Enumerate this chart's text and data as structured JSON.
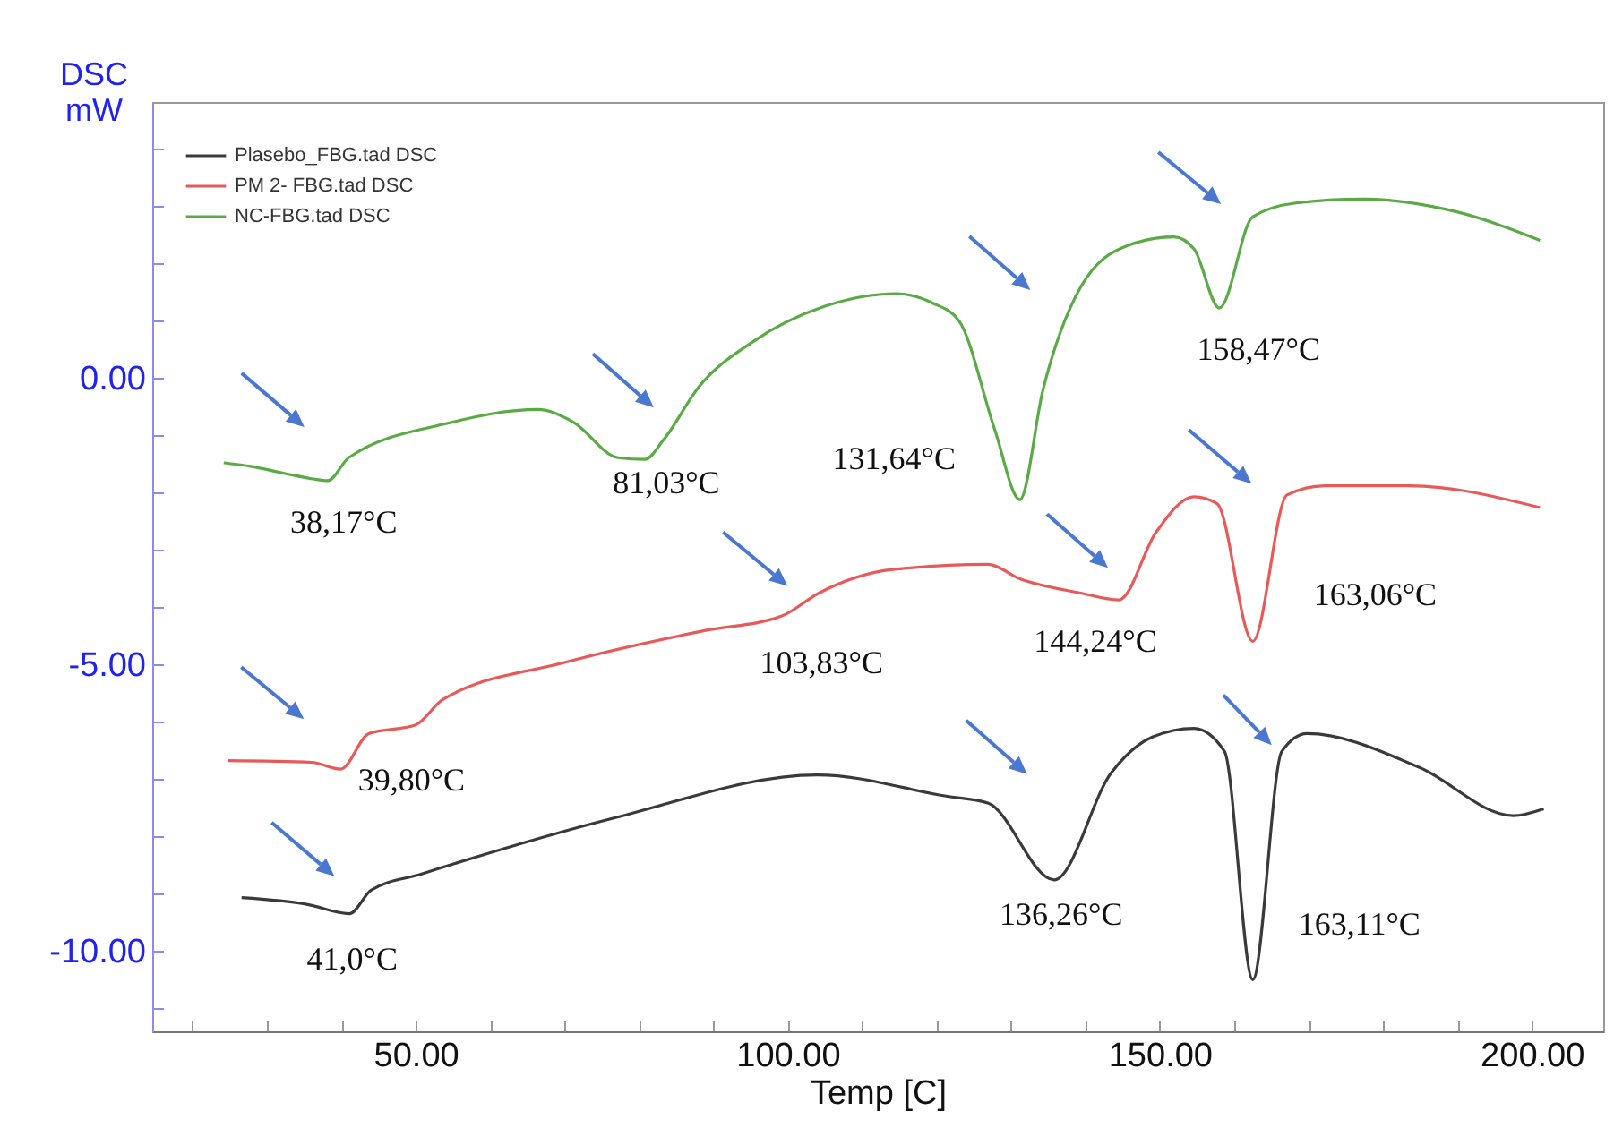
{
  "chart_data": {
    "type": "line",
    "xlabel": "Temp  [C]",
    "ylabel": "DSC mW",
    "xlim": [
      14.6,
      209.6
    ],
    "ylim": [
      -11.4,
      4.8
    ],
    "xticks": [
      {
        "value": 20,
        "label": null
      },
      {
        "value": 30,
        "label": null
      },
      {
        "value": 40,
        "label": null
      },
      {
        "value": 50,
        "label": "50.00"
      },
      {
        "value": 60,
        "label": null
      },
      {
        "value": 70,
        "label": null
      },
      {
        "value": 80,
        "label": null
      },
      {
        "value": 90,
        "label": null
      },
      {
        "value": 100,
        "label": "100.00"
      },
      {
        "value": 110,
        "label": null
      },
      {
        "value": 120,
        "label": null
      },
      {
        "value": 130,
        "label": null
      },
      {
        "value": 140,
        "label": null
      },
      {
        "value": 150,
        "label": "150.00"
      },
      {
        "value": 160,
        "label": null
      },
      {
        "value": 170,
        "label": null
      },
      {
        "value": 180,
        "label": null
      },
      {
        "value": 190,
        "label": null
      },
      {
        "value": 200,
        "label": "200.00"
      }
    ],
    "yticks": [
      {
        "value": -11,
        "label": null
      },
      {
        "value": -10,
        "label": "-10.00"
      },
      {
        "value": -9,
        "label": null
      },
      {
        "value": -8,
        "label": null
      },
      {
        "value": -7,
        "label": null
      },
      {
        "value": -6,
        "label": null
      },
      {
        "value": -5,
        "label": "-5.00"
      },
      {
        "value": -4,
        "label": null
      },
      {
        "value": -3,
        "label": null
      },
      {
        "value": -2,
        "label": null
      },
      {
        "value": -1,
        "label": null
      },
      {
        "value": 0,
        "label": "0.00"
      },
      {
        "value": 1,
        "label": null
      },
      {
        "value": 2,
        "label": null
      },
      {
        "value": 3,
        "label": null
      },
      {
        "value": 4,
        "label": null
      }
    ],
    "grid": false,
    "legend": "top left",
    "marker": "none",
    "line_style": "solid",
    "series": [
      {
        "name": "Plasebo_FBG.tad DSC",
        "color": "#3a3a3a",
        "x": [
          26.6,
          35.5,
          41.1,
          44,
          50.7,
          77,
          104,
          121.3,
          126.9,
          135.8,
          143.5,
          149,
          154.6,
          158.7,
          162.5,
          166.4,
          169.8,
          184.9,
          197.5,
          201.6
        ],
        "values": [
          -9.07,
          -9.19,
          -9.35,
          -8.94,
          -8.66,
          -7.67,
          -6.93,
          -7.3,
          -7.42,
          -8.76,
          -6.89,
          -6.27,
          -6.12,
          -6.52,
          -10.5,
          -6.52,
          -6.21,
          -6.8,
          -7.64,
          -7.52
        ]
      },
      {
        "name": "PM 2- FBG.tad DSC",
        "color": "#e8595a",
        "x": [
          24.7,
          36,
          39.9,
          43.7,
          50,
          53.6,
          70,
          89,
          99.2,
          104.2,
          114.1,
          126.9,
          131.2,
          139.4,
          144.5,
          149.5,
          154.6,
          157.7,
          162.5,
          167.1,
          172.2,
          183.5,
          201.1
        ],
        "values": [
          -6.68,
          -6.71,
          -6.83,
          -6.21,
          -6.06,
          -5.62,
          -4.97,
          -4.41,
          -4.16,
          -3.76,
          -3.35,
          -3.26,
          -3.51,
          -3.76,
          -3.88,
          -2.7,
          -2.08,
          -2.2,
          -4.6,
          -2.05,
          -1.89,
          -1.89,
          -2.27
        ]
      },
      {
        "name": "NC-FBG.tad DSC",
        "color": "#5aaa46",
        "x": [
          24.2,
          27.8,
          32.6,
          36.2,
          38.2,
          41,
          54.3,
          66.4,
          71.2,
          77.2,
          80.8,
          83.3,
          88.1,
          95.3,
          105,
          114.6,
          119.4,
          123,
          127.8,
          131.2,
          134.3,
          139.4,
          145.7,
          151.9,
          154.6,
          158,
          162.5,
          168.3,
          177.2,
          189.8,
          201.1
        ],
        "values": [
          -1.49,
          -1.55,
          -1.68,
          -1.77,
          -1.8,
          -1.4,
          -0.8,
          -0.56,
          -0.78,
          -1.4,
          -1.43,
          -1.09,
          -0.16,
          0.62,
          1.24,
          1.46,
          1.3,
          0.99,
          -0.9,
          -2.13,
          -0.22,
          1.58,
          2.3,
          2.45,
          2.24,
          1.21,
          2.8,
          3.04,
          3.11,
          2.89,
          2.39
        ]
      }
    ],
    "annotations": [
      {
        "text": "38,17°C",
        "x": 38.17,
        "y": -1.8
      },
      {
        "text": "81,03°C",
        "x": 81.03,
        "y": -1.43
      },
      {
        "text": "131,64°C",
        "x": 131.64,
        "y": -2.13
      },
      {
        "text": "158,47°C",
        "x": 158.47,
        "y": 1.21
      },
      {
        "text": "39,80°C",
        "x": 39.8,
        "y": -6.83
      },
      {
        "text": "103,83°C",
        "x": 103.83,
        "y": -3.76
      },
      {
        "text": "144,24°C",
        "x": 144.24,
        "y": -3.88
      },
      {
        "text": "163,06°C",
        "x": 163.06,
        "y": -4.6
      },
      {
        "text": "41,0°C",
        "x": 41.0,
        "y": -9.35
      },
      {
        "text": "136,26°C",
        "x": 136.26,
        "y": -8.76
      },
      {
        "text": "163,11°C",
        "x": 163.11,
        "y": -10.5
      }
    ]
  }
}
